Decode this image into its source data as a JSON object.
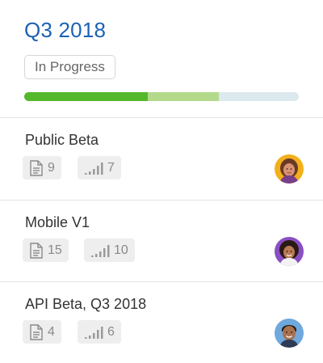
{
  "milestone": {
    "title": "Q3 2018",
    "status": "In Progress",
    "progress": {
      "done": 0.45,
      "in_progress": 0.26,
      "remaining": 0.29
    },
    "colors": {
      "done": "#55b82a",
      "in_progress": "#b3da8b",
      "remaining": "#dce9ee",
      "title": "#1b62b3"
    }
  },
  "projects": [
    {
      "name": "Public Beta",
      "docs": "9",
      "points": "7",
      "avatar_icon": "avatar-woman-yellow"
    },
    {
      "name": "Mobile V1",
      "docs": "15",
      "points": "10",
      "avatar_icon": "avatar-woman-purple"
    },
    {
      "name": "API Beta, Q3 2018",
      "docs": "4",
      "points": "6",
      "avatar_icon": "avatar-man-blue"
    }
  ]
}
